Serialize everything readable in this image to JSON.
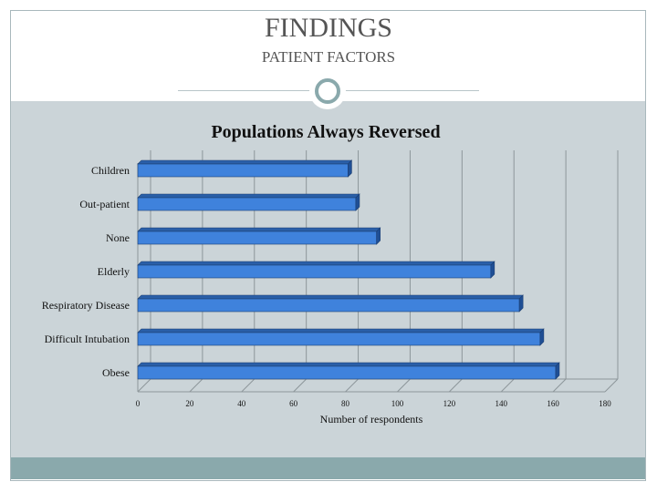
{
  "slide": {
    "title": "FINDINGS",
    "subtitle": "PATIENT FACTORS"
  },
  "colors": {
    "bar_front": "#3f82dc",
    "bar_top": "#2a5fa8",
    "bar_side": "#1f4f95",
    "content_band": "#cbd4d8",
    "footer_band": "#8aa9ac",
    "grid": "#8d969a"
  },
  "chart_data": {
    "type": "bar",
    "orientation": "horizontal",
    "title": "Populations Always Reversed",
    "xlabel": "Number of respondents",
    "ylabel": "",
    "categories": [
      "Children",
      "Out-patient",
      "None",
      "Elderly",
      "Respiratory Disease",
      "Difficult Intubation",
      "Obese"
    ],
    "values": [
      81,
      84,
      92,
      136,
      147,
      155,
      161
    ],
    "xlim": [
      0,
      180
    ],
    "xticks": [
      0,
      20,
      40,
      60,
      80,
      100,
      120,
      140,
      160,
      180
    ],
    "grid": true,
    "legend": "none"
  }
}
